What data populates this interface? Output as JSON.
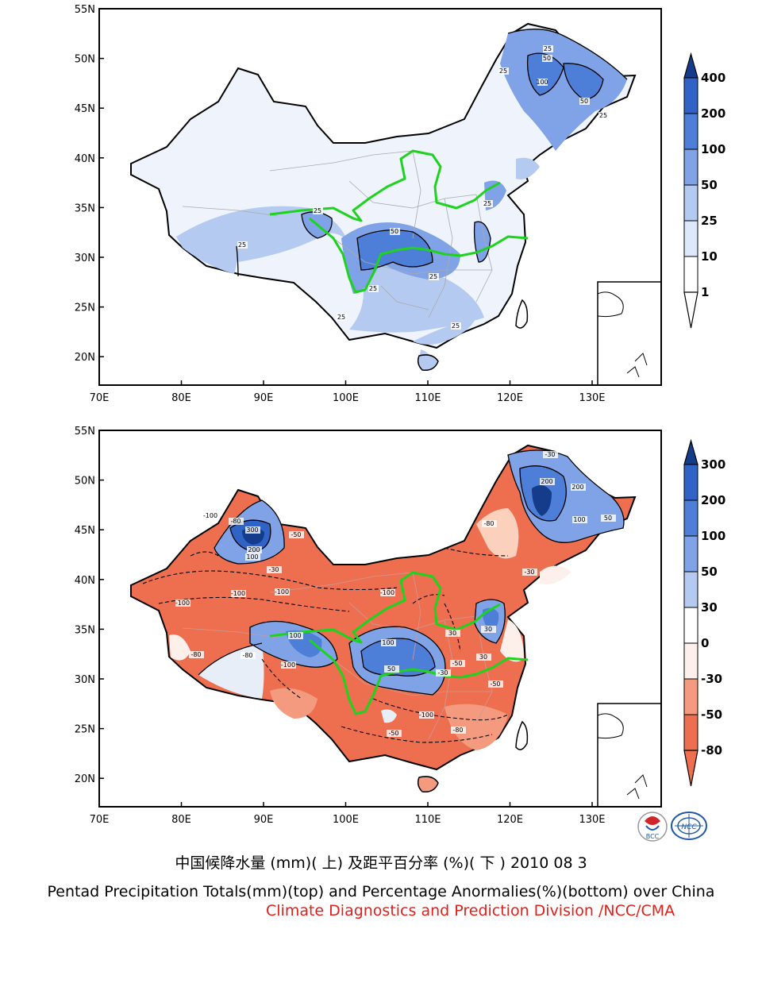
{
  "palette": {
    "blue_scale": [
      "#ffffff",
      "#dde8fa",
      "#b4caf0",
      "#7fa3e6",
      "#4d7fd9",
      "#2f63c6",
      "#143c8a"
    ],
    "anomaly_scale": [
      "#143c8a",
      "#2f63c6",
      "#4d7fd9",
      "#7fa3e6",
      "#b4caf0",
      "#fdf0ea",
      "#fbd0bd",
      "#f49b7f",
      "#ee6f4f"
    ],
    "river": "#1ed31e",
    "caption_red": "#e0201a"
  },
  "axes": {
    "lat_labels": [
      "55N",
      "50N",
      "45N",
      "40N",
      "35N",
      "30N",
      "25N",
      "20N"
    ],
    "lon_labels": [
      "70E",
      "80E",
      "90E",
      "100E",
      "110E",
      "120E",
      "130E"
    ]
  },
  "top_map": {
    "colorbar_labels": [
      "400",
      "200",
      "100",
      "50",
      "25",
      "10",
      "1"
    ],
    "contour_labels": [
      "25",
      "50",
      "100",
      "50",
      "25",
      "25",
      "25",
      "50",
      "25",
      "25",
      "25",
      "25",
      "25",
      "25"
    ]
  },
  "bottom_map": {
    "colorbar_labels": [
      "300",
      "200",
      "100",
      "50",
      "30",
      "0",
      "-30",
      "-50",
      "-80"
    ],
    "contour_labels": [
      "-100",
      "-80",
      "300",
      "200",
      "100",
      "-50",
      "-30",
      "-100",
      "-100",
      "-80",
      "-100",
      "100",
      "-80",
      "-100",
      "-100",
      "30",
      "100",
      "50",
      "-50",
      "-30",
      "-80",
      "-100",
      "-50",
      "30",
      "200",
      "100",
      "50",
      "-30",
      "-80",
      "200",
      "-30",
      "-50",
      "30"
    ]
  },
  "logos": [
    "BCC",
    "NCC"
  ],
  "captions": {
    "chinese": "中国候降水量 (mm)( 上) 及距平百分率 (%)( 下 ) 2010 08 3",
    "english": "Pentad Precipitation Totals(mm)(top) and Percentage Anormalies(%)(bottom) over China",
    "source": "Climate Diagnostics and Prediction Division /NCC/CMA"
  }
}
